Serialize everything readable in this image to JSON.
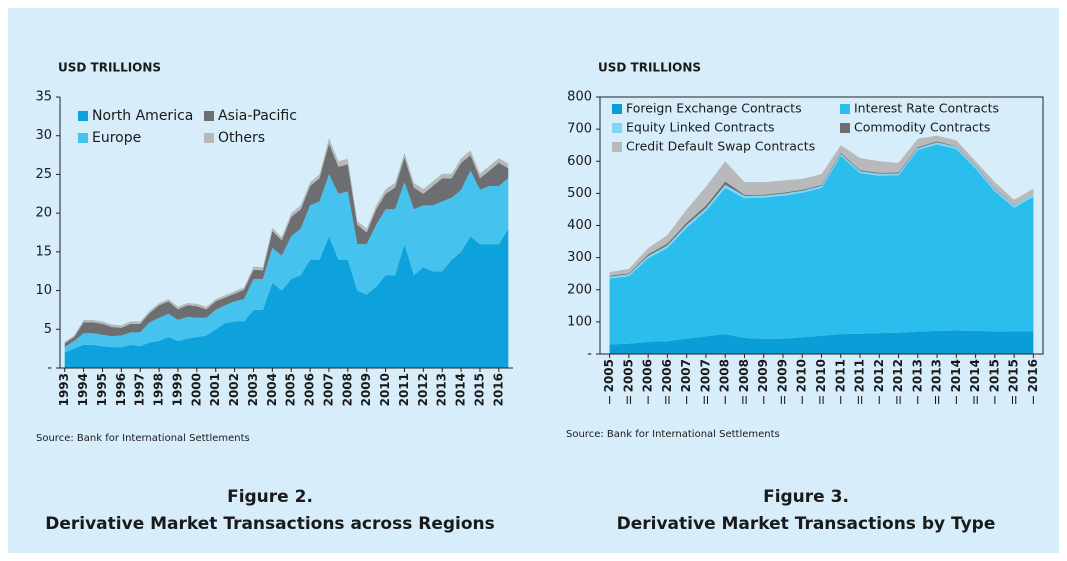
{
  "chart_data": [
    {
      "type": "stacked_area",
      "ylabel": "USD TRILLIONS",
      "source": "Source: Bank for International Settlements",
      "caption_number": "Figure 2.",
      "caption_title": "Derivative Market Transactions across Regions",
      "categories": [
        "1993",
        null,
        "1994",
        null,
        "1995",
        null,
        "1996",
        null,
        "1997",
        null,
        "1998",
        null,
        "1999",
        null,
        "2000",
        null,
        "2001",
        null,
        "2002",
        null,
        "2003",
        null,
        "2004",
        null,
        "2005",
        null,
        "2006",
        null,
        "2007",
        null,
        "2008",
        null,
        "2009",
        null,
        "2010",
        null,
        "2011",
        null,
        "2012",
        null,
        "2013",
        null,
        "2014",
        null,
        "2015",
        null,
        "2016",
        null
      ],
      "ylim": [
        0,
        35
      ],
      "yticks": [
        {
          "value": 0,
          "label": "-"
        },
        5,
        10,
        15,
        20,
        25,
        30,
        35
      ],
      "series": [
        {
          "name": "North America",
          "color": "#0ea2dd",
          "values": [
            2,
            2.5,
            3,
            3,
            2.8,
            2.7,
            2.7,
            3,
            2.8,
            3.3,
            3.5,
            4,
            3.5,
            3.8,
            4,
            4.2,
            5,
            5.8,
            6,
            6,
            7.5,
            7.5,
            11,
            10,
            11.5,
            12,
            14,
            14,
            17,
            14,
            14,
            10,
            9.5,
            10.5,
            12,
            12,
            16,
            12,
            13,
            12.5,
            12.5,
            14,
            15,
            17,
            16,
            16,
            16,
            18
          ]
        },
        {
          "name": "Europe",
          "color": "#45c3ee",
          "values": [
            0.7,
            1,
            1.5,
            1.5,
            1.5,
            1.4,
            1.5,
            1.6,
            1.8,
            2.6,
            3,
            3,
            2.7,
            2.8,
            2.5,
            2.3,
            2.5,
            2.3,
            2.6,
            2.9,
            4,
            4,
            4.5,
            4.5,
            5.5,
            6,
            7,
            7.5,
            8,
            8.5,
            8.8,
            6,
            6.5,
            8,
            8.5,
            8.5,
            8,
            8.5,
            8,
            8.5,
            9,
            8,
            8,
            8.5,
            7,
            7.5,
            7.5,
            6.5
          ]
        },
        {
          "name": "Asia-Pacific",
          "color": "#6d6e71",
          "values": [
            0.5,
            0.5,
            1.4,
            1.4,
            1.4,
            1.2,
            1,
            1.1,
            1.1,
            1.2,
            1.6,
            1.6,
            1.4,
            1.5,
            1.5,
            1.1,
            1.1,
            1,
            1,
            1.2,
            1.2,
            1.1,
            2.2,
            2,
            2.5,
            2.5,
            2.5,
            3,
            4,
            3.5,
            3.5,
            2.5,
            1.5,
            2,
            2,
            2.8,
            3.2,
            2.8,
            1.5,
            2.5,
            3,
            2.5,
            3.5,
            2,
            1.5,
            2,
            3,
            1.3
          ]
        },
        {
          "name": "Others",
          "color": "#b7b8ba",
          "values": [
            0.2,
            0.2,
            0.3,
            0.3,
            0.3,
            0.3,
            0.3,
            0.3,
            0.3,
            0.3,
            0.3,
            0.3,
            0.3,
            0.3,
            0.3,
            0.3,
            0.3,
            0.3,
            0.3,
            0.3,
            0.4,
            0.4,
            0.4,
            0.4,
            0.5,
            0.5,
            0.5,
            0.5,
            0.7,
            0.7,
            0.7,
            0.5,
            0.5,
            0.5,
            0.6,
            0.6,
            0.6,
            0.6,
            0.6,
            0.6,
            0.6,
            0.6,
            0.6,
            0.6,
            0.6,
            0.6,
            0.6,
            0.6
          ]
        }
      ]
    },
    {
      "type": "stacked_area",
      "ylabel": "USD TRILLIONS",
      "source": "Source: Bank for International Settlements",
      "caption_number": "Figure 3.",
      "caption_title": "Derivative Market Transactions by Type",
      "categories": [
        "2005",
        "2005",
        "2006",
        "2006",
        "2007",
        "2007",
        "2008",
        "2008",
        "2009",
        "2009",
        "2010",
        "2010",
        "2011",
        "2011",
        "2012",
        "2012",
        "2013",
        "2013",
        "2014",
        "2014",
        "2015",
        "2015",
        "2016"
      ],
      "x_sublabels": [
        "I",
        "II",
        "I",
        "II",
        "I",
        "II",
        "I",
        "II",
        "I",
        "II",
        "I",
        "II",
        "I",
        "II",
        "I",
        "II",
        "I",
        "II",
        "I",
        "II",
        "I",
        "II",
        "I"
      ],
      "ylim": [
        0,
        800
      ],
      "yticks": [
        {
          "value": 0,
          "label": "-"
        },
        100,
        200,
        300,
        400,
        500,
        600,
        700,
        800
      ],
      "series": [
        {
          "name": "Foreign Exchange Contracts",
          "color": "#0a9ed9",
          "values": [
            30,
            32,
            38,
            40,
            48,
            55,
            62,
            50,
            47,
            48,
            52,
            57,
            62,
            63,
            65,
            66,
            70,
            72,
            73,
            72,
            71,
            70,
            70
          ]
        },
        {
          "name": "Interest Rate Contracts",
          "color": "#2bbdec",
          "values": [
            205,
            210,
            260,
            290,
            345,
            390,
            455,
            435,
            440,
            445,
            450,
            460,
            555,
            500,
            490,
            490,
            565,
            580,
            565,
            505,
            435,
            385,
            420
          ]
        },
        {
          "name": "Equity Linked Contracts",
          "color": "#7fd5f3",
          "values": [
            6,
            6,
            7,
            8,
            9,
            9,
            10,
            7,
            6,
            6,
            6,
            6,
            6,
            6,
            6,
            6,
            6,
            7,
            7,
            7,
            7,
            7,
            7
          ]
        },
        {
          "name": "Commodity Contracts",
          "color": "#6d6e71",
          "values": [
            3,
            3,
            5,
            6,
            7,
            8,
            10,
            4,
            3,
            3,
            3,
            3,
            3,
            3,
            3,
            3,
            3,
            3,
            2,
            2,
            2,
            1,
            1
          ]
        },
        {
          "name": "Credit Default Swap Contracts",
          "color": "#b8b9bb",
          "values": [
            11,
            14,
            20,
            26,
            41,
            58,
            63,
            39,
            39,
            38,
            34,
            34,
            24,
            38,
            36,
            30,
            26,
            18,
            18,
            14,
            20,
            17,
            17
          ]
        }
      ]
    }
  ]
}
